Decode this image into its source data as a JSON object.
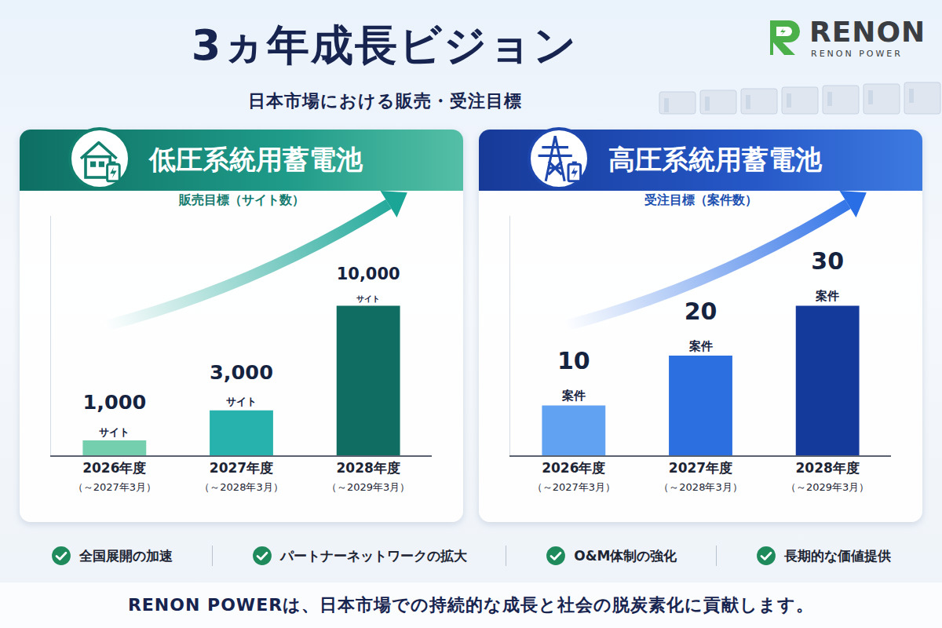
{
  "header": {
    "title": "3ヵ年成長ビジョン",
    "subtitle": "日本市場における販売・受注目標"
  },
  "logo": {
    "name": "RENON",
    "tagline": "RENON POWER"
  },
  "chart_data": [
    {
      "type": "bar",
      "title": "低圧系統用蓄電池",
      "subtitle": "販売目標（サイト数）",
      "categories": [
        "2026年度\n（～2027年3月）",
        "2027年度\n（～2028年3月）",
        "2028年度\n（～2029年3月）"
      ],
      "values": [
        1000,
        3000,
        10000
      ],
      "value_labels": [
        "1,000 サイト",
        "3,000 サイト",
        "10,000 サイト"
      ],
      "colors": [
        "#74cfae",
        "#27b2ad",
        "#0f6d62"
      ],
      "ylim": [
        0,
        16000
      ],
      "yticks": [],
      "grid": false,
      "data_labels": true,
      "tick_labels": "x"
    },
    {
      "type": "bar",
      "title": "高圧系統用蓄電池",
      "subtitle": "受注目標（案件数）",
      "categories": [
        "2026年度\n（～2027年3月）",
        "2027年度\n（～2028年3月）",
        "2028年度\n（～2029年3月）"
      ],
      "values": [
        10,
        20,
        30
      ],
      "value_labels": [
        "10 案件",
        "20 案件",
        "30 案件"
      ],
      "colors": [
        "#62a2f2",
        "#2b6fe0",
        "#143a9c"
      ],
      "ylim": [
        0,
        48
      ],
      "yticks": [],
      "grid": false,
      "data_labels": true,
      "tick_labels": "x"
    }
  ],
  "badges": [
    "全国展開の加速",
    "パートナーネットワークの拡大",
    "O&M体制の強化",
    "長期的な価値提供"
  ],
  "footer": "RENON POWERは、日本市場での持続的な成長と社会の脱炭素化に貢献します。"
}
